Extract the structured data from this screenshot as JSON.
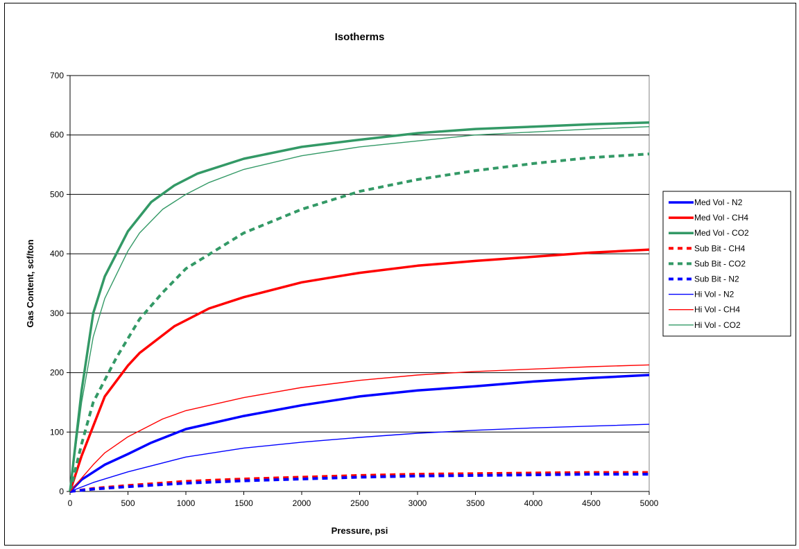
{
  "chart_data": {
    "type": "line",
    "title": "Isotherms",
    "xlabel": "Pressure, psi",
    "ylabel": "Gas Content, scf/ton",
    "xlim": [
      0,
      5000
    ],
    "ylim": [
      0,
      700
    ],
    "x_ticks": [
      0,
      500,
      1000,
      1500,
      2000,
      2500,
      3000,
      3500,
      4000,
      4500,
      5000
    ],
    "y_ticks": [
      0,
      100,
      200,
      300,
      400,
      500,
      600,
      700
    ],
    "grid": "horizontal",
    "legend_position": "right",
    "series": [
      {
        "name": "Med Vol - N2",
        "color": "#0000ff",
        "style": "thick-solid",
        "x": [
          0,
          100,
          300,
          500,
          700,
          1000,
          1500,
          2000,
          2500,
          3000,
          3500,
          4000,
          4500,
          5000
        ],
        "y": [
          0,
          20,
          45,
          63,
          82,
          105,
          127,
          145,
          160,
          170,
          177,
          185,
          191,
          196
        ]
      },
      {
        "name": "Med Vol - CH4",
        "color": "#ff0000",
        "style": "thick-solid",
        "x": [
          0,
          100,
          300,
          500,
          600,
          900,
          1200,
          1500,
          2000,
          2500,
          3000,
          3500,
          4000,
          4500,
          5000
        ],
        "y": [
          0,
          60,
          160,
          212,
          233,
          278,
          308,
          327,
          352,
          368,
          380,
          388,
          395,
          402,
          407
        ]
      },
      {
        "name": "Med Vol - CO2",
        "color": "#339966",
        "style": "thick-solid",
        "x": [
          0,
          100,
          200,
          300,
          500,
          700,
          900,
          1100,
          1500,
          2000,
          2500,
          3000,
          3500,
          4000,
          4500,
          5000
        ],
        "y": [
          0,
          170,
          300,
          362,
          438,
          487,
          515,
          535,
          560,
          580,
          592,
          603,
          610,
          614,
          618,
          621
        ]
      },
      {
        "name": "Sub Bit - CH4",
        "color": "#ff0000",
        "style": "thick-dashed",
        "x": [
          0,
          200,
          500,
          1000,
          1500,
          2000,
          2500,
          3000,
          3500,
          4000,
          4500,
          5000
        ],
        "y": [
          0,
          5,
          10,
          17,
          21,
          24,
          27,
          29,
          30,
          31,
          32,
          32
        ]
      },
      {
        "name": "Sub Bit - CO2",
        "color": "#339966",
        "style": "thick-dashed",
        "x": [
          0,
          100,
          200,
          400,
          600,
          800,
          1000,
          1500,
          2000,
          2500,
          3000,
          3500,
          4000,
          4500,
          5000
        ],
        "y": [
          0,
          80,
          150,
          225,
          290,
          335,
          375,
          435,
          475,
          505,
          525,
          540,
          552,
          562,
          568
        ]
      },
      {
        "name": "Sub Bit - N2",
        "color": "#0000ff",
        "style": "thick-dashed",
        "x": [
          0,
          200,
          500,
          1000,
          1500,
          2000,
          2500,
          3000,
          3500,
          4000,
          4500,
          5000
        ],
        "y": [
          0,
          4,
          8,
          14,
          18,
          21,
          24,
          26,
          27,
          28,
          29,
          29
        ]
      },
      {
        "name": "Hi Vol - N2",
        "color": "#0000ff",
        "style": "thin-solid",
        "x": [
          0,
          200,
          500,
          1000,
          1500,
          2000,
          2500,
          3000,
          3500,
          4000,
          4500,
          5000
        ],
        "y": [
          0,
          15,
          33,
          58,
          73,
          83,
          91,
          98,
          103,
          107,
          110,
          113
        ]
      },
      {
        "name": "Hi Vol - CH4",
        "color": "#ff0000",
        "style": "thin-solid",
        "x": [
          0,
          200,
          300,
          500,
          800,
          1000,
          1500,
          2000,
          2500,
          3000,
          3500,
          4000,
          4500,
          5000
        ],
        "y": [
          0,
          45,
          65,
          92,
          122,
          136,
          158,
          175,
          187,
          196,
          202,
          206,
          210,
          213
        ]
      },
      {
        "name": "Hi Vol - CO2",
        "color": "#339966",
        "style": "thin-solid",
        "x": [
          0,
          100,
          200,
          300,
          500,
          600,
          800,
          1000,
          1200,
          1500,
          2000,
          2500,
          3000,
          3500,
          4000,
          4500,
          5000
        ],
        "y": [
          0,
          150,
          260,
          325,
          405,
          435,
          475,
          500,
          520,
          542,
          565,
          580,
          590,
          600,
          605,
          610,
          614
        ]
      }
    ]
  }
}
